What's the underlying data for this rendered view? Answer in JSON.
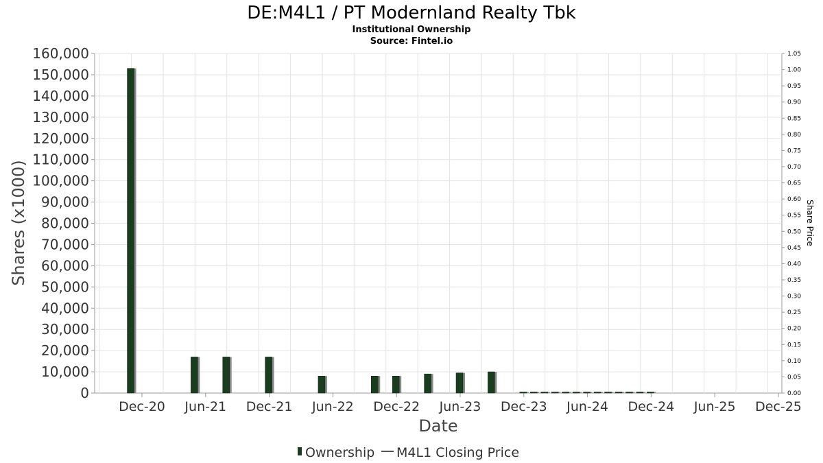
{
  "chart_data": {
    "type": "bar",
    "title": "DE:M4L1 / PT Modernland Realty Tbk",
    "subtitle": "Institutional Ownership",
    "source": "Source: Fintel.io",
    "xlabel": "Date",
    "ylabel": "Shares (x1000)",
    "y2label": "Share Price",
    "ylim": [
      0,
      160000
    ],
    "y2lim": [
      0,
      1.05
    ],
    "y_ticks": [
      "0",
      "10,000",
      "20,000",
      "30,000",
      "40,000",
      "50,000",
      "60,000",
      "70,000",
      "80,000",
      "90,000",
      "100,000",
      "110,000",
      "120,000",
      "130,000",
      "140,000",
      "150,000",
      "160,000"
    ],
    "y2_ticks": [
      "0.00",
      "0.05",
      "0.10",
      "0.15",
      "0.20",
      "0.25",
      "0.30",
      "0.35",
      "0.40",
      "0.45",
      "0.50",
      "0.55",
      "0.60",
      "0.65",
      "0.70",
      "0.75",
      "0.80",
      "0.85",
      "0.90",
      "0.95",
      "1.00",
      "1.05"
    ],
    "x_ticks": [
      "Dec-20",
      "Jun-21",
      "Dec-21",
      "Jun-22",
      "Dec-22",
      "Jun-23",
      "Dec-23",
      "Jun-24",
      "Dec-24",
      "Jun-25",
      "Dec-25"
    ],
    "grid": true,
    "legend_position": "bottom",
    "series": [
      {
        "name": "Ownership",
        "color": "#1a3d1f",
        "points": [
          {
            "date": "2020-11",
            "value": 153000
          },
          {
            "date": "2021-05",
            "value": 17000
          },
          {
            "date": "2021-08",
            "value": 17000
          },
          {
            "date": "2021-12",
            "value": 17000
          },
          {
            "date": "2022-05",
            "value": 8000
          },
          {
            "date": "2022-10",
            "value": 8000
          },
          {
            "date": "2022-12",
            "value": 8000
          },
          {
            "date": "2023-03",
            "value": 9000
          },
          {
            "date": "2023-06",
            "value": 9500
          },
          {
            "date": "2023-09",
            "value": 10000
          },
          {
            "date": "2023-12",
            "value": 300
          },
          {
            "date": "2024-01",
            "value": 300
          },
          {
            "date": "2024-02",
            "value": 300
          },
          {
            "date": "2024-03",
            "value": 300
          },
          {
            "date": "2024-04",
            "value": 300
          },
          {
            "date": "2024-05",
            "value": 300
          },
          {
            "date": "2024-06",
            "value": 300
          },
          {
            "date": "2024-07",
            "value": 300
          },
          {
            "date": "2024-08",
            "value": 300
          },
          {
            "date": "2024-09",
            "value": 300
          },
          {
            "date": "2024-10",
            "value": 300
          },
          {
            "date": "2024-11",
            "value": 300
          },
          {
            "date": "2024-12",
            "value": 300
          }
        ]
      },
      {
        "name": "M4L1 Closing Price",
        "color": "#555555",
        "points": []
      }
    ]
  }
}
